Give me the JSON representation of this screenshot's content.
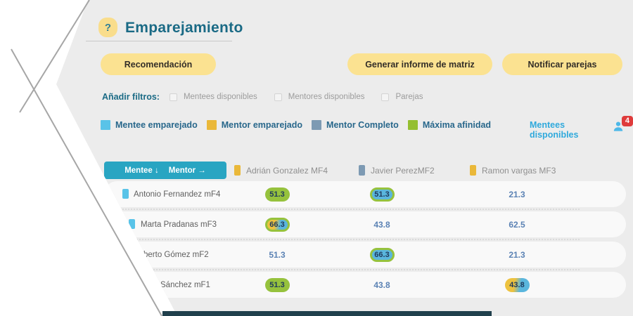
{
  "header": {
    "help_label": "?",
    "title": "Emparejamiento"
  },
  "actions": [
    {
      "label": "Recomendación"
    },
    {
      "label": "Generar informe de matriz"
    },
    {
      "label": "Notificar parejas"
    }
  ],
  "filters": {
    "label": "Añadir filtros:",
    "options": [
      {
        "label": "Mentees disponibles",
        "checked": false
      },
      {
        "label": "Mentores disponibles",
        "checked": false
      },
      {
        "label": "Parejas",
        "checked": false
      }
    ]
  },
  "legend": [
    {
      "label": "Mentee emparejado",
      "color": "#59c3e8"
    },
    {
      "label": "Mentor emparejado",
      "color": "#eab839"
    },
    {
      "label": "Mentor Completo",
      "color": "#7d9ab3"
    },
    {
      "label": "Máxima afinidad",
      "color": "#94bf30"
    }
  ],
  "mentees_available": {
    "label": "Mentees disponibles",
    "count": "4"
  },
  "matrix": {
    "corner": {
      "row_axis": "Mentee ↓",
      "col_axis": "Mentor →"
    },
    "columns": [
      {
        "label": "Adrián Gonzalez MF4",
        "color": "#eab839"
      },
      {
        "label": "Javier PerezMF2",
        "color": "#7d9ab3"
      },
      {
        "label": "Ramon vargas MF3",
        "color": "#eab839"
      }
    ],
    "rows": [
      {
        "name": "Antonio Fernandez mF4",
        "marker_color": "#59c3e8",
        "cells": [
          {
            "value": "51.3",
            "style": "green"
          },
          {
            "value": "51.3",
            "style": "blue-green"
          },
          {
            "value": "21.3",
            "style": "plain"
          }
        ]
      },
      {
        "name": "Marta Pradanas mF3",
        "marker_color": "#59c3e8",
        "cells": [
          {
            "value": "66.3",
            "style": "split-green"
          },
          {
            "value": "43.8",
            "style": "plain"
          },
          {
            "value": "62.5",
            "style": "plain"
          }
        ]
      },
      {
        "name": "berto Gómez mF2",
        "marker_color": "#59c3e8",
        "cells": [
          {
            "value": "51.3",
            "style": "plain"
          },
          {
            "value": "66.3",
            "style": "blue-green"
          },
          {
            "value": "21.3",
            "style": "plain"
          }
        ]
      },
      {
        "name": "Sánchez mF1",
        "marker_color": "#59c3e8",
        "cells": [
          {
            "value": "51.3",
            "style": "green"
          },
          {
            "value": "43.8",
            "style": "plain"
          },
          {
            "value": "43.8",
            "style": "split"
          }
        ]
      }
    ]
  },
  "palette": {
    "badge_green": "#96c23d",
    "badge_blue": "#5ab6dd",
    "badge_yellow": "#edc23f",
    "badge_text": "#1f3a5c",
    "value_text": "#5b82b4",
    "accent_teal": "#29a5c2",
    "title_teal": "#1a6a85",
    "button_yellow": "#fbe291",
    "alert_red": "#df3b3b",
    "link_blue": "#2fa9dc"
  }
}
